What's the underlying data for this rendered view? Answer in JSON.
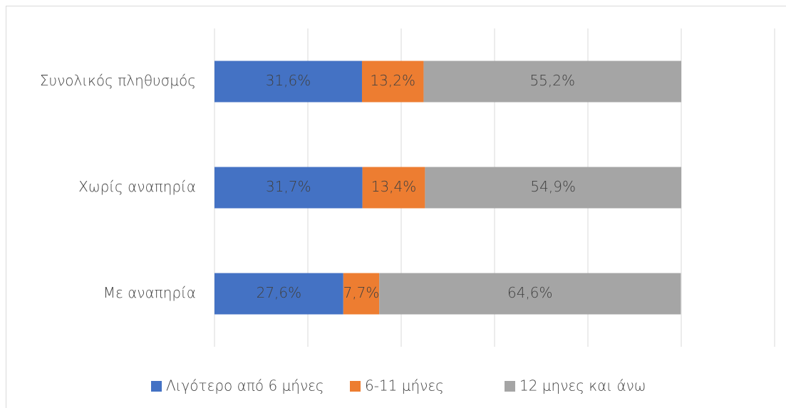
{
  "chart_data": {
    "type": "stacked-barh",
    "categories": [
      "Συνολικός πληθυσμός",
      "Χωρίς αναπηρία",
      "Με αναπηρία"
    ],
    "series": [
      {
        "name": "Λιγότερο από 6 μήνες",
        "color": "#4472c4",
        "values": [
          31.6,
          31.7,
          27.6
        ],
        "value_labels": [
          "31,6%",
          "31,7%",
          "27,6%"
        ]
      },
      {
        "name": "6-11 μήνες",
        "color": "#ed7d31",
        "values": [
          13.2,
          13.4,
          7.7
        ],
        "value_labels": [
          "13,2%",
          "13,4%",
          "7,7%"
        ]
      },
      {
        "name": "12 μηνες και άνω",
        "color": "#a5a5a5",
        "values": [
          55.2,
          54.9,
          64.6
        ],
        "value_labels": [
          "55,2%",
          "54,9%",
          "64,6%"
        ]
      }
    ],
    "xlim": [
      0,
      120
    ],
    "xticks": [
      0,
      20,
      40,
      60,
      80,
      100,
      120
    ],
    "grid": true,
    "legend": "bottom"
  }
}
